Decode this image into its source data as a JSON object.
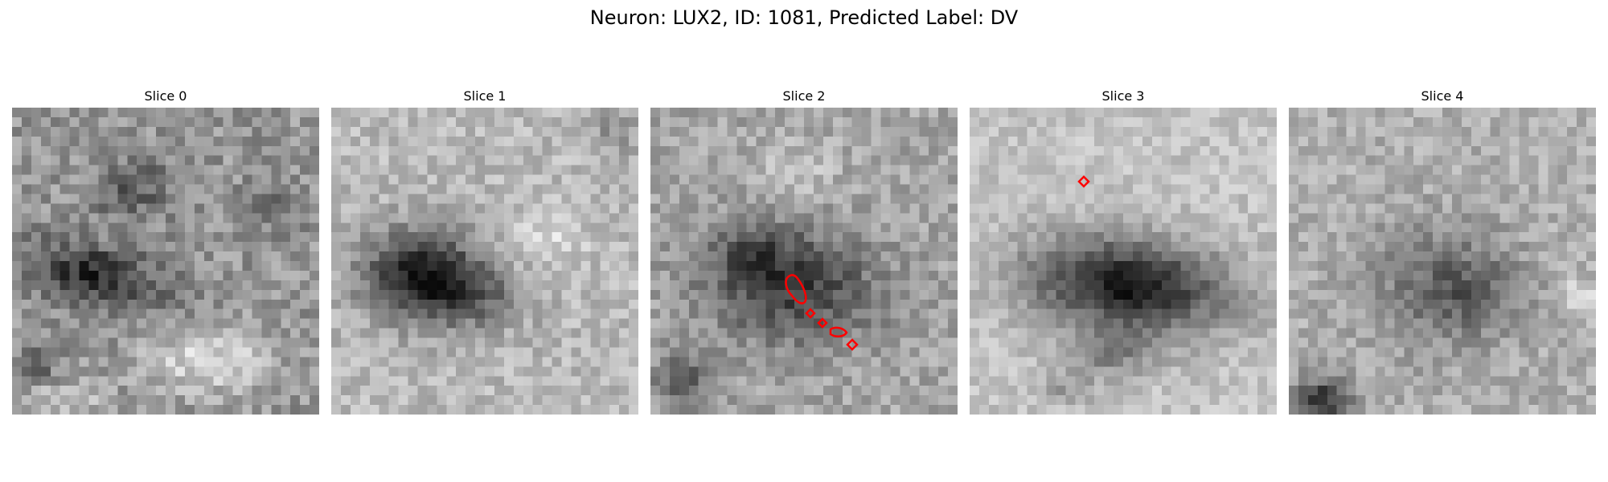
{
  "figure": {
    "title": "Neuron: LUX2, ID: 1081, Predicted Label: DV"
  },
  "panels": [
    {
      "title": "Slice 0"
    },
    {
      "title": "Slice 1"
    },
    {
      "title": "Slice 2"
    },
    {
      "title": "Slice 3"
    },
    {
      "title": "Slice 4"
    }
  ],
  "colors": {
    "contour": "#ff0000",
    "background": "#ffffff"
  }
}
